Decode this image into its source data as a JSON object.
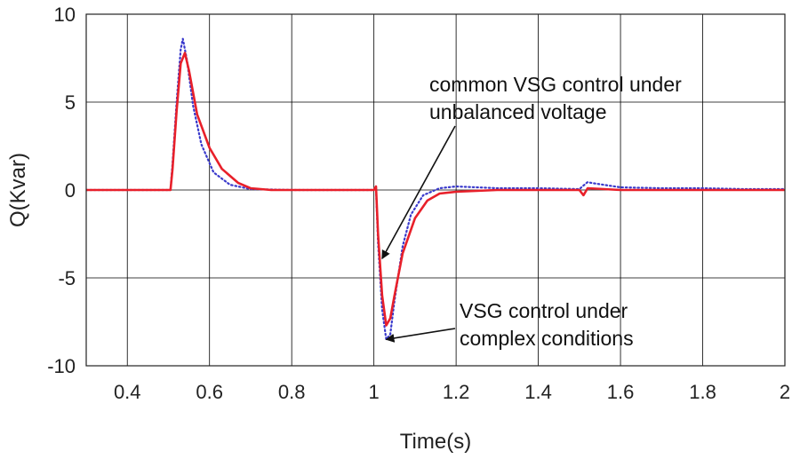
{
  "chart_data": {
    "type": "line",
    "title": "",
    "xlabel": "Time(s)",
    "ylabel": "Q(Kvar)",
    "xlim": [
      0.3,
      2.0
    ],
    "ylim": [
      -10,
      10
    ],
    "xticks": [
      0.4,
      0.6,
      0.8,
      1.0,
      1.2,
      1.4,
      1.6,
      1.8,
      2.0
    ],
    "xtick_labels": [
      "0.4",
      "0.6",
      "0.8",
      "1",
      "1.2",
      "1.4",
      "1.6",
      "1.8",
      "2"
    ],
    "yticks": [
      -10,
      -5,
      0,
      5,
      10
    ],
    "ytick_labels": [
      "-10",
      "-5",
      "0",
      "5",
      "10"
    ],
    "grid": true,
    "series": [
      {
        "color": "#e8202a",
        "style": "solid",
        "x": [
          0.3,
          0.5,
          0.505,
          0.51,
          0.52,
          0.53,
          0.54,
          0.55,
          0.57,
          0.6,
          0.63,
          0.67,
          0.7,
          0.75,
          0.8,
          0.9,
          1.0,
          1.005,
          1.01,
          1.02,
          1.03,
          1.04,
          1.05,
          1.07,
          1.1,
          1.13,
          1.16,
          1.2,
          1.3,
          1.4,
          1.5,
          1.51,
          1.52,
          1.6,
          1.7,
          1.8,
          1.9,
          2.0
        ],
        "y": [
          0,
          0,
          0,
          1.2,
          4.5,
          7.2,
          7.8,
          6.8,
          4.3,
          2.4,
          1.2,
          0.4,
          0.1,
          0,
          0,
          0,
          0,
          0.2,
          -2.5,
          -6.0,
          -7.7,
          -7.3,
          -6.0,
          -3.6,
          -1.6,
          -0.6,
          -0.2,
          -0.1,
          0,
          0,
          0,
          -0.3,
          0.1,
          0,
          0,
          0,
          0,
          0
        ]
      },
      {
        "color": "#3a3acc",
        "style": "dotted",
        "x": [
          0.3,
          0.5,
          0.505,
          0.51,
          0.52,
          0.53,
          0.535,
          0.545,
          0.56,
          0.58,
          0.61,
          0.65,
          0.7,
          0.8,
          0.9,
          1.0,
          1.005,
          1.01,
          1.02,
          1.03,
          1.04,
          1.05,
          1.07,
          1.09,
          1.12,
          1.16,
          1.2,
          1.3,
          1.4,
          1.5,
          1.51,
          1.52,
          1.53,
          1.6,
          1.7,
          1.8,
          1.9,
          2.0
        ],
        "y": [
          0,
          0,
          0,
          1.5,
          5.0,
          8.0,
          8.6,
          7.4,
          4.8,
          2.6,
          1.0,
          0.3,
          0.05,
          0,
          0,
          0,
          0.1,
          -3.0,
          -6.8,
          -8.5,
          -8.2,
          -6.3,
          -3.2,
          -1.4,
          -0.3,
          0.1,
          0.2,
          0.1,
          0.1,
          0.05,
          0.25,
          0.45,
          0.4,
          0.15,
          0.1,
          0.1,
          0.05,
          0.05
        ]
      }
    ],
    "annotations": [
      {
        "lines": [
          "common VSG control under",
          "unbalanced voltage"
        ],
        "arrow_to": [
          1.02,
          -3.9
        ]
      },
      {
        "lines": [
          "VSG control under",
          "complex conditions"
        ],
        "arrow_to": [
          1.03,
          -8.5
        ]
      }
    ]
  }
}
